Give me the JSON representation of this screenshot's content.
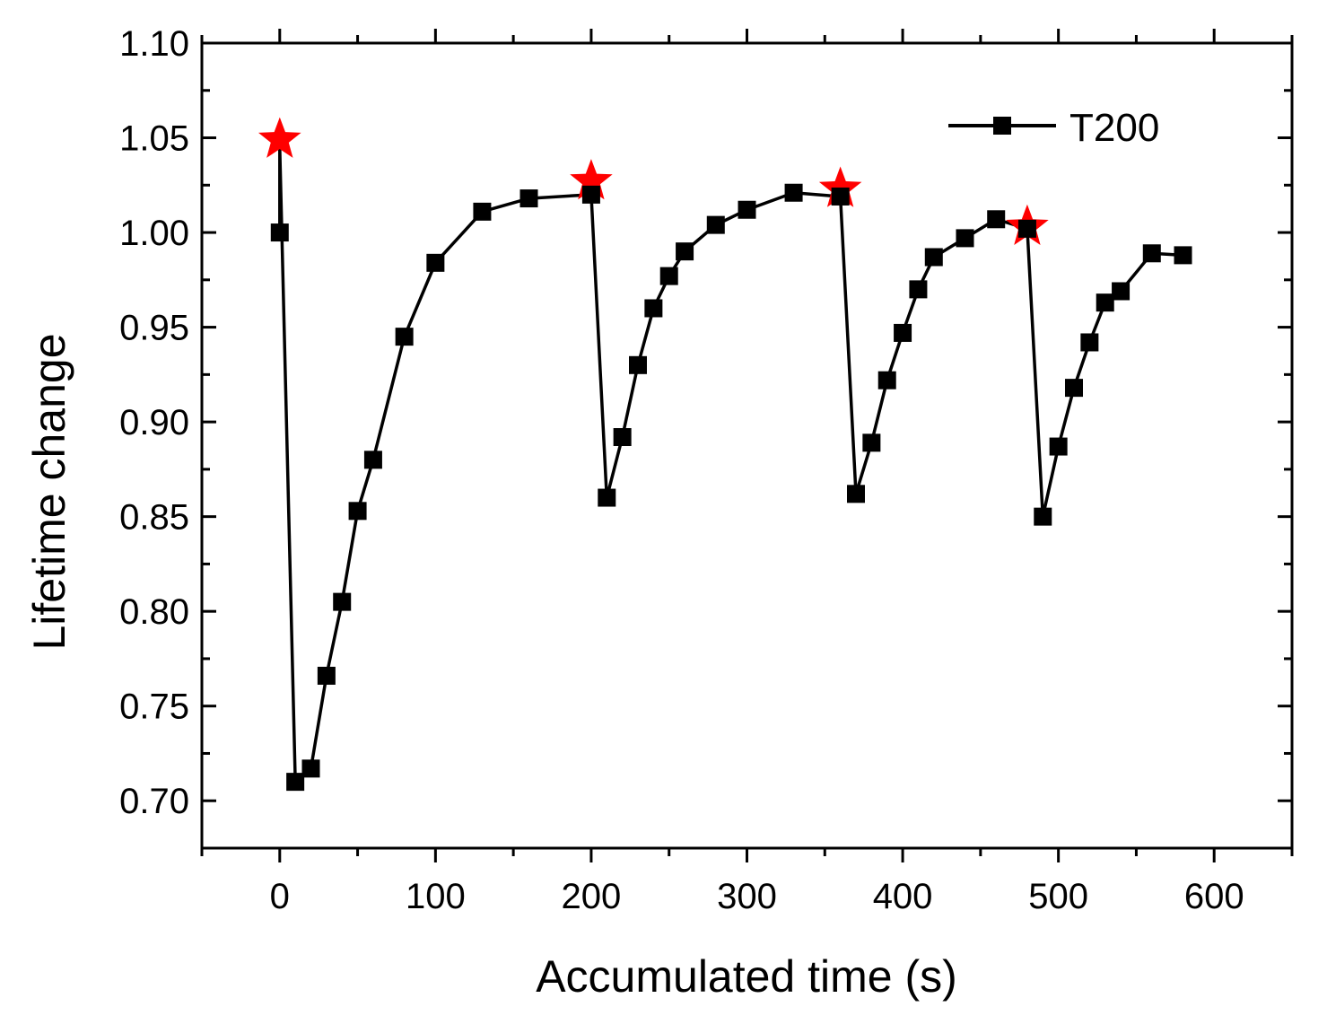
{
  "chart_data": {
    "type": "line",
    "title": "",
    "xlabel": "Accumulated time (s)",
    "ylabel": "Lifetime change",
    "xlim": [
      -50,
      650
    ],
    "ylim": [
      0.675,
      1.1
    ],
    "x_ticks": [
      0,
      100,
      200,
      300,
      400,
      500,
      600
    ],
    "x_tick_labels": [
      "0",
      "100",
      "200",
      "300",
      "400",
      "500",
      "600"
    ],
    "y_ticks": [
      0.7,
      0.75,
      0.8,
      0.85,
      0.9,
      0.95,
      1.0,
      1.05,
      1.1
    ],
    "y_tick_labels": [
      "0.70",
      "0.75",
      "0.80",
      "0.85",
      "0.90",
      "0.95",
      "1.00",
      "1.05",
      "1.10"
    ],
    "grid": false,
    "legend": {
      "position": "top-right",
      "entries": [
        "T200"
      ]
    },
    "series": [
      {
        "name": "T200",
        "color": "#000000",
        "marker": "square",
        "points": [
          [
            0,
            1.0
          ],
          [
            0,
            1.045
          ],
          [
            10,
            0.71
          ],
          [
            20,
            0.717
          ],
          [
            30,
            0.766
          ],
          [
            40,
            0.805
          ],
          [
            50,
            0.853
          ],
          [
            60,
            0.88
          ],
          [
            80,
            0.945
          ],
          [
            100,
            0.984
          ],
          [
            130,
            1.011
          ],
          [
            160,
            1.018
          ],
          [
            200,
            1.02
          ],
          [
            210,
            0.86
          ],
          [
            220,
            0.892
          ],
          [
            230,
            0.93
          ],
          [
            240,
            0.96
          ],
          [
            250,
            0.977
          ],
          [
            260,
            0.99
          ],
          [
            280,
            1.004
          ],
          [
            300,
            1.012
          ],
          [
            330,
            1.021
          ],
          [
            360,
            1.019
          ],
          [
            370,
            0.862
          ],
          [
            380,
            0.889
          ],
          [
            390,
            0.922
          ],
          [
            400,
            0.947
          ],
          [
            410,
            0.97
          ],
          [
            420,
            0.987
          ],
          [
            440,
            0.997
          ],
          [
            460,
            1.007
          ],
          [
            480,
            1.002
          ],
          [
            490,
            0.85
          ],
          [
            500,
            0.887
          ],
          [
            510,
            0.918
          ],
          [
            520,
            0.942
          ],
          [
            530,
            0.963
          ],
          [
            540,
            0.969
          ],
          [
            560,
            0.989
          ],
          [
            580,
            0.988
          ]
        ],
        "square_markers_exclude_index": [
          1
        ]
      }
    ],
    "annotations": {
      "star_color": "#ff0000",
      "stars": [
        [
          0,
          1.049
        ],
        [
          200,
          1.027
        ],
        [
          360,
          1.023
        ],
        [
          480,
          1.003
        ]
      ]
    }
  }
}
